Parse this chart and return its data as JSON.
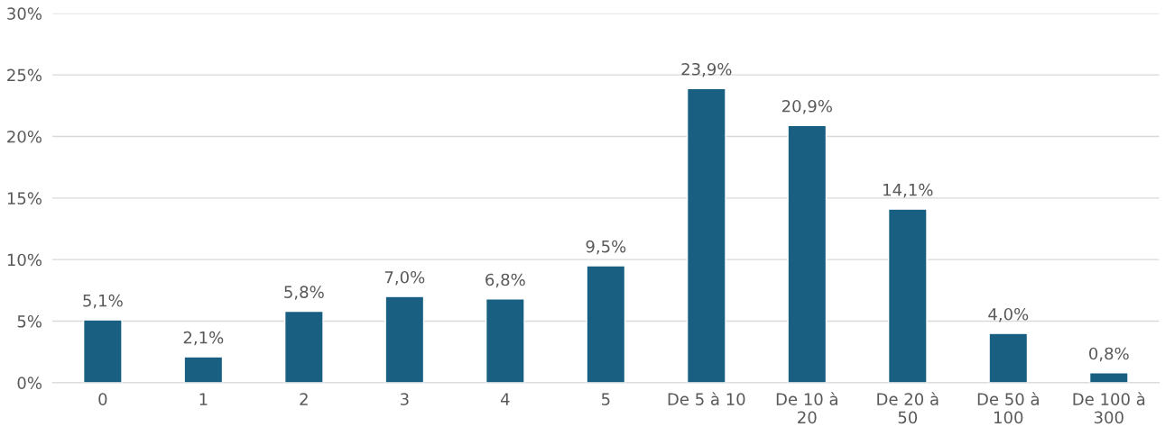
{
  "chart_data": {
    "type": "bar",
    "categories": [
      "0",
      "1",
      "2",
      "3",
      "4",
      "5",
      "De 5 à 10",
      "De 10 à 20",
      "De 20 à 50",
      "De 50 à 100",
      "De 100 à 300"
    ],
    "values": [
      5.1,
      2.1,
      5.8,
      7.0,
      6.8,
      9.5,
      23.9,
      20.9,
      14.1,
      4.0,
      0.8
    ],
    "value_labels": [
      "5,1%",
      "2,1%",
      "5,8%",
      "7,0%",
      "6,8%",
      "9,5%",
      "23,9%",
      "20,9%",
      "14,1%",
      "4,0%",
      "0,8%"
    ],
    "color": "#185f82",
    "ylim": [
      0,
      30
    ],
    "yticks": [
      {
        "value": 0,
        "label": "0%"
      },
      {
        "value": 5,
        "label": "5%"
      },
      {
        "value": 10,
        "label": "10%"
      },
      {
        "value": 15,
        "label": "15%"
      },
      {
        "value": 20,
        "label": "20%"
      },
      {
        "value": 25,
        "label": "25%"
      },
      {
        "value": 30,
        "label": "30%"
      }
    ],
    "grid": "y"
  }
}
